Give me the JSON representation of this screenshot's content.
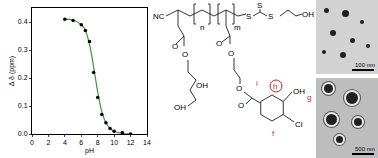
{
  "chart_data": {
    "type": "scatter",
    "x_label": "pH",
    "y_label": "Δ δ (ppm)",
    "xlim": [
      0,
      14
    ],
    "xticks": [
      0,
      2,
      4,
      6,
      8,
      10,
      12,
      14
    ],
    "ylim": [
      0,
      0.45
    ],
    "yticks": [
      {
        "value": 0,
        "label": "0.0"
      },
      0.1,
      0.2,
      0.3,
      0.4
    ],
    "grid": false,
    "series": [
      {
        "type": "scatter",
        "marker": "circle",
        "color": "#000000",
        "x": [
          4,
          5,
          6,
          6.5,
          7,
          7.5,
          8,
          8.5,
          9,
          9.5,
          10,
          11,
          12
        ],
        "values": [
          0.41,
          0.405,
          0.39,
          0.37,
          0.33,
          0.22,
          0.13,
          0.07,
          0.04,
          0.02,
          0.01,
          0.005,
          0.0
        ]
      },
      {
        "type": "line",
        "line_style": "solid",
        "color": "#3a9a3a",
        "x": [
          3.8,
          5,
          6,
          6.5,
          7,
          7.5,
          8,
          8.5,
          9,
          9.5,
          10,
          11,
          12.2
        ],
        "values": [
          0.41,
          0.407,
          0.39,
          0.37,
          0.32,
          0.24,
          0.15,
          0.08,
          0.04,
          0.02,
          0.01,
          0.002,
          0.0
        ]
      }
    ]
  },
  "structure": {
    "labels": [
      "NC",
      "n",
      "m",
      "S",
      "S",
      "S",
      "OH",
      "O",
      "O",
      "OH",
      "OH",
      "O",
      "O",
      "O",
      "O",
      "OH",
      "Cl",
      "h",
      "i",
      "g",
      "f"
    ]
  },
  "micrographs": [
    {
      "scale_bar": "100 nm"
    },
    {
      "scale_bar": "500 nm"
    }
  ]
}
